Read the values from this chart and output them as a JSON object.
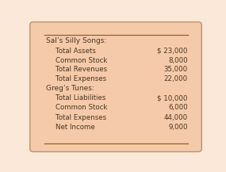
{
  "background_color": "#fce8d8",
  "box_color": "#f5caaa",
  "border_color": "#b8956a",
  "line_color": "#8b6914",
  "text_color": "#4a3520",
  "section1_header": "Sal’s Silly Songs:",
  "section1_rows": [
    [
      "Total Assets",
      "$ 23,000"
    ],
    [
      "Common Stock",
      "8,000"
    ],
    [
      "Total Revenues",
      "35,000"
    ],
    [
      "Total Expenses",
      "22,000"
    ]
  ],
  "section2_header": "Greg’s Tunes:",
  "section2_rows": [
    [
      "Total Liabilities",
      "$ 10,000"
    ],
    [
      "Common Stock",
      "6,000"
    ],
    [
      "Total Expenses",
      "44,000"
    ],
    [
      "Net Income",
      "9,000"
    ]
  ],
  "figsize": [
    2.85,
    2.17
  ],
  "dpi": 100
}
